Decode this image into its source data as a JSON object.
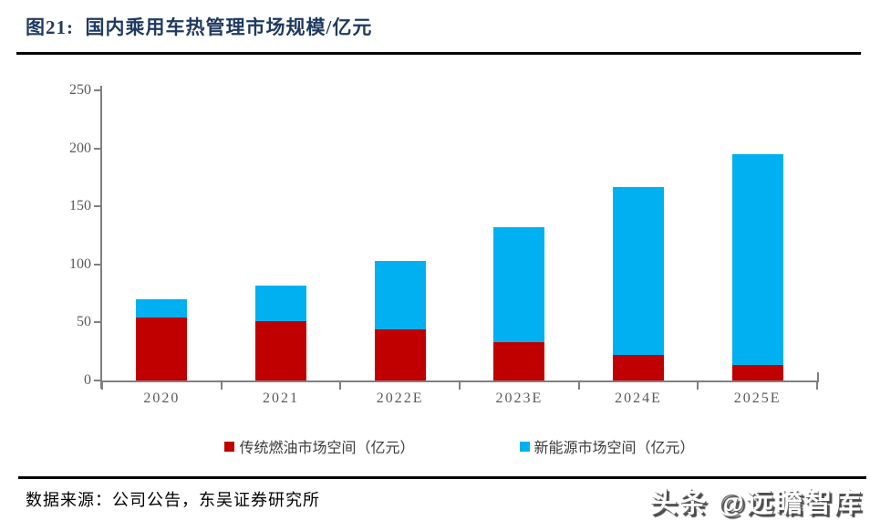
{
  "title": "图21:  国内乘用车热管理市场规模/亿元",
  "footer": {
    "source_text": "数据来源：公司公告，东吴证券研究所"
  },
  "watermark": "头条 @远瞻智库",
  "colors": {
    "traditional_fuel": "#C00000",
    "new_energy": "#00B0F0",
    "title_navy": "#1F3A5F",
    "axis_gray": "#808080",
    "tick_label_gray": "#595959",
    "divider_black": "#000000"
  },
  "chart_data": {
    "type": "bar",
    "stacked": true,
    "title": "国内乘用车热管理市场规模/亿元",
    "categories": [
      "2020",
      "2021",
      "2022E",
      "2023E",
      "2024E",
      "2025E"
    ],
    "series": [
      {
        "name": "传统燃油市场空间（亿元）",
        "color": "#C00000",
        "values": [
          54,
          51,
          44,
          33,
          22,
          13
        ]
      },
      {
        "name": "新能源市场空间（亿元）",
        "color": "#00B0F0",
        "values": [
          16,
          31,
          59,
          99,
          145,
          182
        ]
      }
    ],
    "totals": [
      70,
      82,
      103,
      132,
      167,
      195
    ],
    "xlabel": "",
    "ylabel": "",
    "ylim": [
      0,
      250
    ],
    "ytick_step": 50,
    "yticks": [
      0,
      50,
      100,
      150,
      200,
      250
    ],
    "grid": false,
    "legend_position": "bottom"
  }
}
